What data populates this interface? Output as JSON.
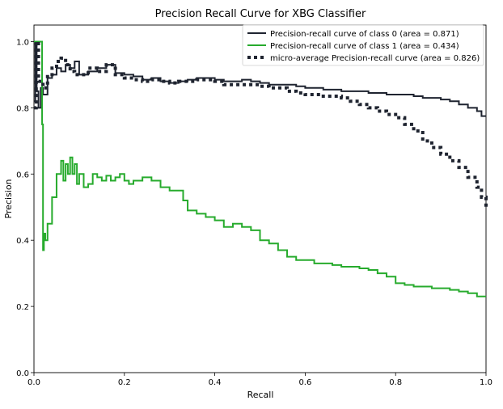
{
  "chart_data": {
    "type": "line",
    "title": "Precision Recall Curve for XBG Classifier",
    "xlabel": "Recall",
    "ylabel": "Precision",
    "xlim": [
      0.0,
      1.0
    ],
    "ylim": [
      0.0,
      1.05
    ],
    "xticks": [
      "0.0",
      "0.2",
      "0.4",
      "0.6",
      "0.8",
      "1.0"
    ],
    "yticks": [
      "0.0",
      "0.2",
      "0.4",
      "0.6",
      "0.8",
      "1.0"
    ],
    "grid": false,
    "legend_position": "upper right",
    "series": [
      {
        "name": "Precision-recall curve of class 0 (area = 0.871)",
        "color": "#1f2430",
        "style": "solid",
        "x": [
          0.0,
          0.003,
          0.006,
          0.01,
          0.015,
          0.02,
          0.03,
          0.04,
          0.05,
          0.06,
          0.07,
          0.08,
          0.09,
          0.1,
          0.12,
          0.14,
          0.16,
          0.18,
          0.2,
          0.22,
          0.24,
          0.26,
          0.28,
          0.3,
          0.32,
          0.34,
          0.36,
          0.38,
          0.4,
          0.42,
          0.44,
          0.46,
          0.48,
          0.5,
          0.52,
          0.54,
          0.56,
          0.58,
          0.6,
          0.62,
          0.64,
          0.66,
          0.68,
          0.7,
          0.72,
          0.74,
          0.76,
          0.78,
          0.8,
          0.82,
          0.84,
          0.86,
          0.88,
          0.9,
          0.92,
          0.94,
          0.96,
          0.98,
          0.99,
          1.0
        ],
        "y": [
          0.82,
          1.0,
          0.85,
          0.8,
          0.86,
          0.84,
          0.89,
          0.9,
          0.92,
          0.91,
          0.93,
          0.92,
          0.94,
          0.9,
          0.91,
          0.92,
          0.93,
          0.905,
          0.9,
          0.895,
          0.885,
          0.89,
          0.88,
          0.875,
          0.88,
          0.885,
          0.89,
          0.89,
          0.885,
          0.88,
          0.88,
          0.885,
          0.88,
          0.875,
          0.87,
          0.87,
          0.87,
          0.865,
          0.86,
          0.86,
          0.855,
          0.855,
          0.85,
          0.85,
          0.85,
          0.845,
          0.845,
          0.84,
          0.84,
          0.84,
          0.835,
          0.83,
          0.83,
          0.825,
          0.82,
          0.81,
          0.8,
          0.79,
          0.775,
          0.775
        ]
      },
      {
        "name": "Precision-recall curve of class 1 (area = 0.434)",
        "color": "#27ab2d",
        "style": "solid",
        "x": [
          0.0,
          0.005,
          0.01,
          0.015,
          0.018,
          0.02,
          0.022,
          0.025,
          0.03,
          0.04,
          0.05,
          0.06,
          0.065,
          0.07,
          0.075,
          0.08,
          0.085,
          0.09,
          0.095,
          0.1,
          0.11,
          0.12,
          0.13,
          0.14,
          0.15,
          0.16,
          0.17,
          0.18,
          0.19,
          0.2,
          0.21,
          0.22,
          0.24,
          0.26,
          0.28,
          0.3,
          0.32,
          0.33,
          0.34,
          0.36,
          0.38,
          0.4,
          0.42,
          0.44,
          0.46,
          0.48,
          0.5,
          0.52,
          0.54,
          0.56,
          0.58,
          0.6,
          0.62,
          0.64,
          0.66,
          0.68,
          0.7,
          0.72,
          0.74,
          0.76,
          0.78,
          0.8,
          0.82,
          0.84,
          0.86,
          0.88,
          0.9,
          0.92,
          0.94,
          0.96,
          0.98,
          1.0
        ],
        "y": [
          1.0,
          1.0,
          1.0,
          1.0,
          0.75,
          0.37,
          0.42,
          0.4,
          0.45,
          0.53,
          0.6,
          0.64,
          0.58,
          0.63,
          0.6,
          0.65,
          0.6,
          0.63,
          0.57,
          0.6,
          0.56,
          0.57,
          0.6,
          0.59,
          0.58,
          0.595,
          0.58,
          0.59,
          0.6,
          0.58,
          0.57,
          0.58,
          0.59,
          0.58,
          0.56,
          0.55,
          0.55,
          0.52,
          0.49,
          0.48,
          0.47,
          0.46,
          0.44,
          0.45,
          0.44,
          0.43,
          0.4,
          0.39,
          0.37,
          0.35,
          0.34,
          0.34,
          0.33,
          0.33,
          0.325,
          0.32,
          0.32,
          0.315,
          0.31,
          0.3,
          0.29,
          0.27,
          0.265,
          0.26,
          0.26,
          0.255,
          0.255,
          0.25,
          0.245,
          0.24,
          0.23,
          0.23
        ]
      },
      {
        "name": "micro-average Precision-recall curve (area = 0.826)",
        "color": "#1f2430",
        "style": "dotted",
        "x": [
          0.0,
          0.005,
          0.01,
          0.02,
          0.03,
          0.04,
          0.05,
          0.06,
          0.07,
          0.08,
          0.09,
          0.1,
          0.12,
          0.14,
          0.16,
          0.18,
          0.2,
          0.22,
          0.24,
          0.26,
          0.28,
          0.3,
          0.32,
          0.34,
          0.36,
          0.38,
          0.4,
          0.42,
          0.44,
          0.46,
          0.48,
          0.5,
          0.52,
          0.54,
          0.56,
          0.58,
          0.6,
          0.62,
          0.64,
          0.66,
          0.68,
          0.7,
          0.72,
          0.74,
          0.76,
          0.78,
          0.8,
          0.82,
          0.84,
          0.86,
          0.88,
          0.9,
          0.92,
          0.94,
          0.96,
          0.98,
          0.99,
          1.0
        ],
        "y": [
          0.8,
          1.0,
          0.88,
          0.86,
          0.9,
          0.92,
          0.94,
          0.95,
          0.93,
          0.91,
          0.9,
          0.9,
          0.92,
          0.91,
          0.93,
          0.9,
          0.89,
          0.885,
          0.88,
          0.885,
          0.88,
          0.875,
          0.88,
          0.88,
          0.885,
          0.885,
          0.88,
          0.87,
          0.87,
          0.87,
          0.87,
          0.865,
          0.86,
          0.86,
          0.85,
          0.845,
          0.84,
          0.84,
          0.835,
          0.835,
          0.83,
          0.82,
          0.81,
          0.8,
          0.79,
          0.78,
          0.77,
          0.75,
          0.73,
          0.7,
          0.68,
          0.66,
          0.64,
          0.62,
          0.59,
          0.56,
          0.53,
          0.5
        ]
      }
    ]
  }
}
